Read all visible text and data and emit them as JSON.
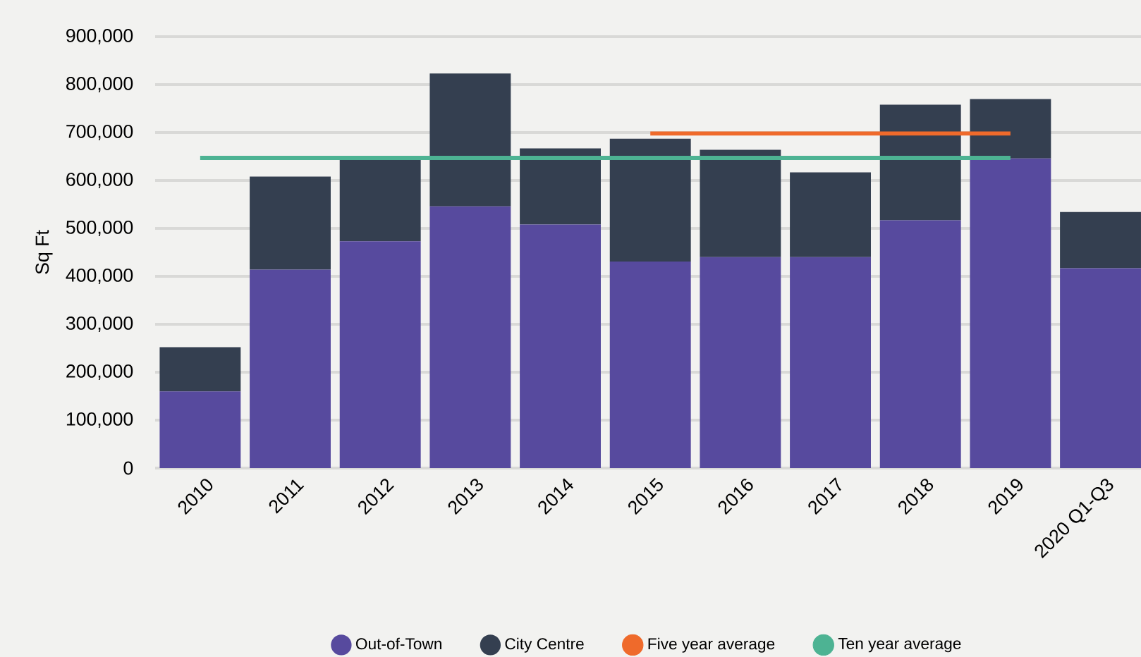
{
  "chart_data": {
    "type": "bar",
    "stacked": true,
    "ylabel": "Sq Ft",
    "categories": [
      "2010",
      "2011",
      "2012",
      "2013",
      "2014",
      "2015",
      "2016",
      "2017",
      "2018",
      "2019",
      "2020 Q1-Q3"
    ],
    "series": [
      {
        "name": "Out-of-Town",
        "color": "#574a9e",
        "values": [
          160000,
          414000,
          473000,
          546000,
          508000,
          431000,
          440000,
          440000,
          517000,
          646000,
          417000
        ]
      },
      {
        "name": "City Centre",
        "color": "#343f50",
        "values": [
          92000,
          194000,
          171000,
          277000,
          159000,
          256000,
          224000,
          177000,
          241000,
          124000,
          117000
        ]
      },
      {
        "name": "Five year average",
        "type": "line",
        "color": "#ef6a2b",
        "values": [
          null,
          null,
          null,
          null,
          null,
          698000,
          698000,
          698000,
          698000,
          698000,
          null
        ]
      },
      {
        "name": "Ten year average",
        "type": "line",
        "color": "#4db393",
        "values": [
          647000,
          647000,
          647000,
          647000,
          647000,
          647000,
          647000,
          647000,
          647000,
          647000,
          null
        ]
      }
    ],
    "ylim": [
      0,
      900000
    ],
    "yticks": [
      0,
      {
        "value": 100000,
        "label": "100,000"
      },
      {
        "value": 200000,
        "label": "200,000"
      },
      {
        "value": 300000,
        "label": "300,000"
      },
      {
        "value": 400000,
        "label": "400,000"
      },
      {
        "value": 500000,
        "label": "500,000"
      },
      {
        "value": 600000,
        "label": "600,000"
      },
      {
        "value": 700000,
        "label": "700,000"
      },
      {
        "value": 800000,
        "label": "800,000"
      },
      {
        "value": 900000,
        "label": "900,000"
      }
    ],
    "grid": "y",
    "legend": "bottom"
  }
}
